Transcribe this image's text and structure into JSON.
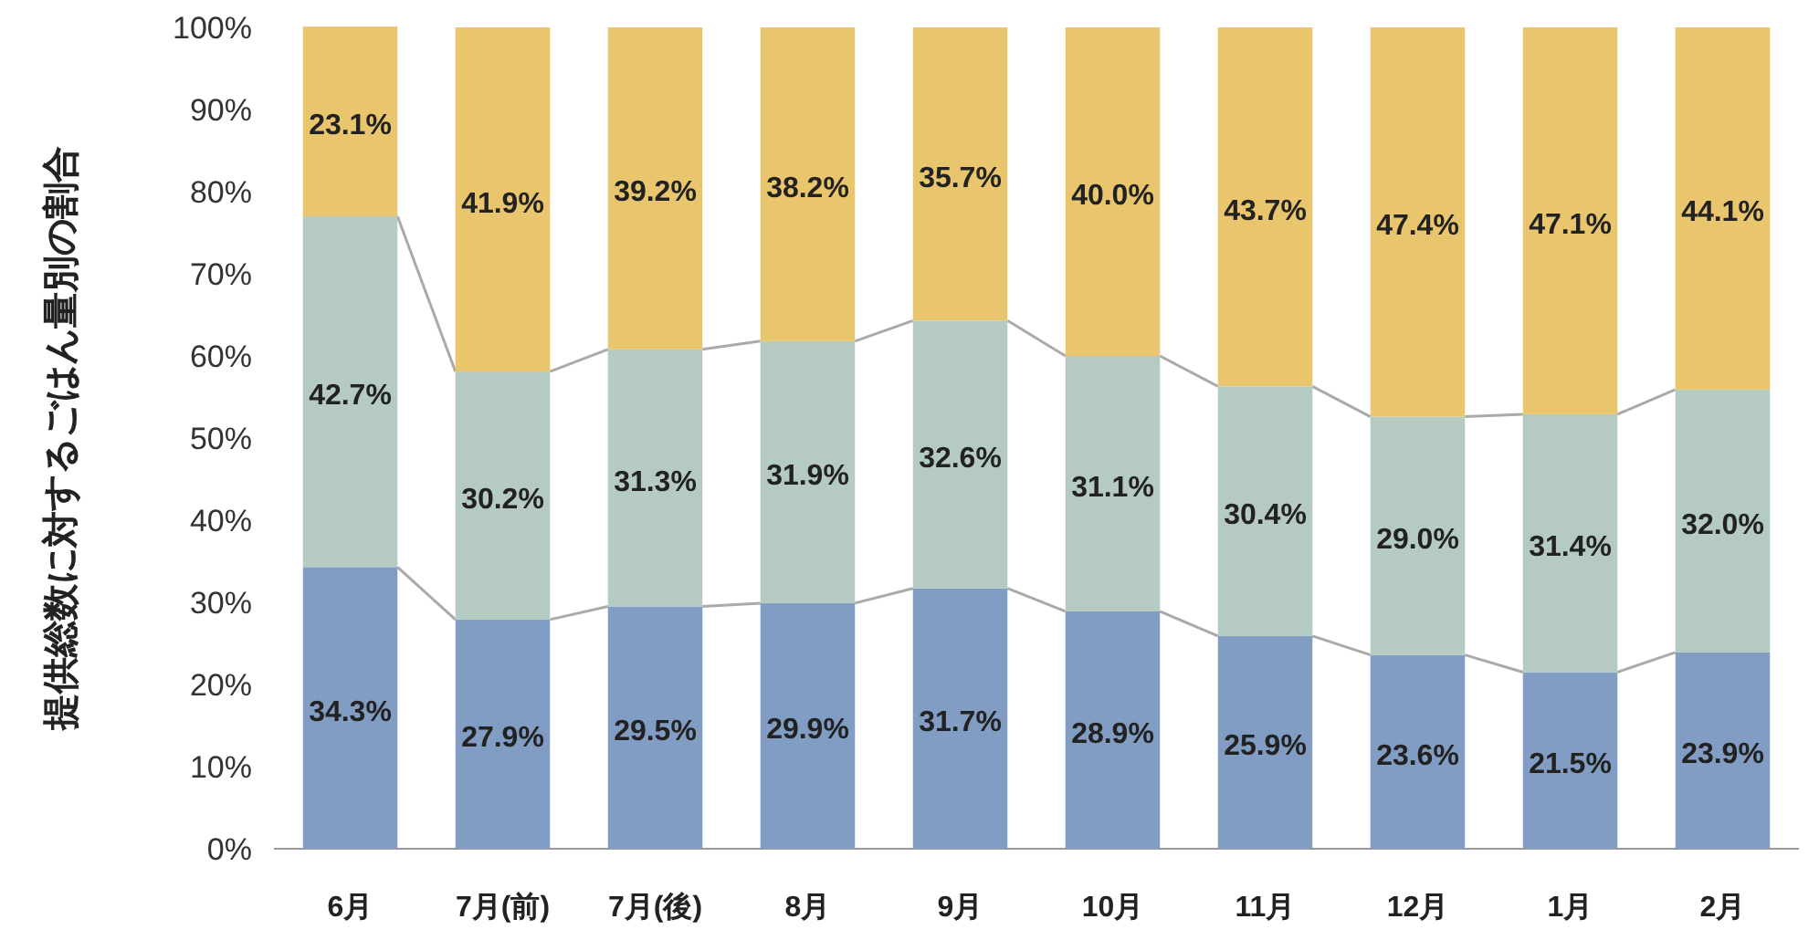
{
  "chart_data": {
    "type": "bar",
    "stacked": true,
    "ylabel": "提供総数に対するごはん量別の割合",
    "categories": [
      "6月",
      "7月(前)",
      "7月(後)",
      "8月",
      "9月",
      "10月",
      "11月",
      "12月",
      "1月",
      "2月"
    ],
    "ylim": [
      0,
      100
    ],
    "yticks": [
      {
        "value": 0,
        "label": "0%"
      },
      {
        "value": 10,
        "label": "10%"
      },
      {
        "value": 20,
        "label": "20%"
      },
      {
        "value": 30,
        "label": "30%"
      },
      {
        "value": 40,
        "label": "40%"
      },
      {
        "value": 50,
        "label": "50%"
      },
      {
        "value": 60,
        "label": "60%"
      },
      {
        "value": 70,
        "label": "70%"
      },
      {
        "value": 80,
        "label": "80%"
      },
      {
        "value": 90,
        "label": "90%"
      },
      {
        "value": 100,
        "label": "100%"
      }
    ],
    "series": [
      {
        "color": "#819dc3",
        "values": [
          34.3,
          27.9,
          29.5,
          29.9,
          31.7,
          28.9,
          25.9,
          23.6,
          21.5,
          23.9
        ],
        "value_labels": [
          "34.3%",
          "27.9%",
          "29.5%",
          "29.9%",
          "31.7%",
          "28.9%",
          "25.9%",
          "23.6%",
          "21.5%",
          "23.9%"
        ]
      },
      {
        "color": "#b5cbc1",
        "values": [
          42.7,
          30.2,
          31.3,
          31.9,
          32.6,
          31.1,
          30.4,
          29.0,
          31.4,
          32.0
        ],
        "value_labels": [
          "42.7%",
          "30.2%",
          "31.3%",
          "31.9%",
          "32.6%",
          "31.1%",
          "30.4%",
          "29.0%",
          "31.4%",
          "32.0%"
        ]
      },
      {
        "color": "#e9c56d",
        "values": [
          23.1,
          41.9,
          39.2,
          38.2,
          35.7,
          40.0,
          43.7,
          47.4,
          47.1,
          44.1
        ],
        "value_labels": [
          "23.1%",
          "41.9%",
          "39.2%",
          "38.2%",
          "35.7%",
          "40.0%",
          "43.7%",
          "47.4%",
          "47.1%",
          "44.1%"
        ]
      }
    ]
  }
}
